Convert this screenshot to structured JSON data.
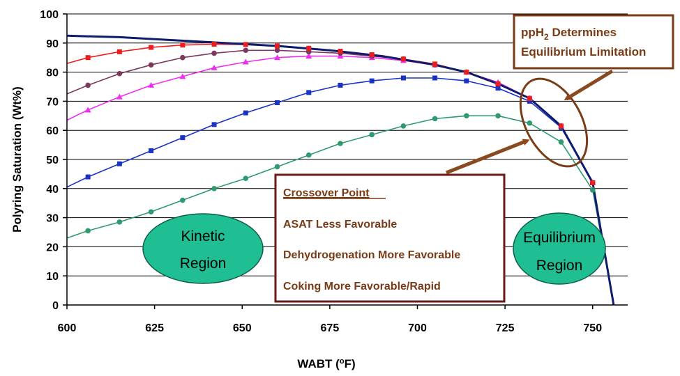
{
  "chart_data": {
    "type": "line",
    "xlabel": "WABT",
    "xlabel_unit_sup": "o",
    "xlabel_unit": "F",
    "ylabel": "Polyring Saturation (Wt%)",
    "xlim": [
      600,
      760
    ],
    "ylim": [
      0,
      100
    ],
    "x_ticks": [
      600,
      625,
      650,
      675,
      700,
      725,
      750
    ],
    "y_ticks": [
      0,
      10,
      20,
      30,
      40,
      50,
      60,
      70,
      80,
      90,
      100
    ],
    "grid": "horizontal",
    "series": [
      {
        "color": "#2e9a6e",
        "marker": "circle",
        "x": [
          600,
          606,
          615,
          624,
          633,
          642,
          651,
          660,
          669,
          678,
          687,
          696,
          705,
          714,
          723,
          732,
          741,
          750,
          756
        ],
        "y": [
          23,
          25.5,
          28.5,
          32,
          36,
          40,
          43.5,
          47.5,
          51.5,
          55.5,
          58.5,
          61.5,
          64,
          65,
          65,
          62.5,
          56,
          39.5,
          0
        ]
      },
      {
        "color": "#1a33c4",
        "marker": "square",
        "x": [
          600,
          606,
          615,
          624,
          633,
          642,
          651,
          660,
          669,
          678,
          687,
          696,
          705,
          714,
          723,
          732,
          741,
          750,
          756
        ],
        "y": [
          40.5,
          44,
          48.5,
          53,
          57.5,
          62,
          66,
          69.5,
          73,
          75.5,
          77,
          78,
          78,
          77,
          74.5,
          70,
          61,
          42,
          0
        ]
      },
      {
        "color": "#ee30ee",
        "marker": "triangle",
        "x": [
          600,
          606,
          615,
          624,
          633,
          642,
          651,
          660,
          669,
          678,
          687,
          696,
          705,
          714,
          723,
          732,
          741,
          750,
          756
        ],
        "y": [
          63.5,
          67,
          71.5,
          75.5,
          78.5,
          81.5,
          83.5,
          85,
          85.5,
          85.5,
          85,
          84,
          82.5,
          80,
          76.5,
          71,
          61.5,
          42,
          0
        ]
      },
      {
        "color": "#7a3a5e",
        "marker": "circle",
        "x": [
          600,
          606,
          615,
          624,
          633,
          642,
          651,
          660,
          669,
          678,
          687,
          696,
          705,
          714,
          723,
          732,
          741,
          750,
          756
        ],
        "y": [
          72.5,
          75.5,
          79.5,
          82.5,
          85,
          86.5,
          87.5,
          87.5,
          87,
          86.5,
          85.5,
          84.5,
          82.5,
          80,
          76,
          71,
          61.5,
          42,
          0
        ]
      },
      {
        "color": "#ee1c1c",
        "marker": "square",
        "x": [
          600,
          606,
          615,
          624,
          633,
          642,
          651,
          660,
          669,
          678,
          687,
          696,
          705,
          714,
          723,
          732,
          741,
          750,
          756
        ],
        "y": [
          83,
          85,
          87,
          88.5,
          89.3,
          89.6,
          89.5,
          89,
          88.2,
          87.2,
          86,
          84.5,
          82.8,
          80,
          76,
          71,
          61.5,
          42,
          0
        ]
      },
      {
        "color": "#0f1b6e",
        "marker": "none",
        "x": [
          600,
          615,
          630,
          645,
          660,
          675,
          690,
          705,
          714,
          723,
          732,
          741,
          750,
          756
        ],
        "y": [
          92.5,
          92,
          91,
          90,
          89,
          87.5,
          85.5,
          82.5,
          80,
          76,
          71,
          61.5,
          42,
          0
        ]
      }
    ]
  },
  "annotations": {
    "pph2": {
      "line1_pre": "ppH",
      "line1_sub": "2",
      "line1_post": " Determines",
      "line2": "Equilibrium Limitation"
    },
    "crossover": {
      "title": "Crossover Point",
      "items": [
        "ASAT Less Favorable",
        "Dehydrogenation More Favorable",
        "Coking More Favorable/Rapid"
      ]
    },
    "kinetic": {
      "line1": "Kinetic",
      "line2": "Region"
    },
    "equilibrium": {
      "line1": "Equilibrium",
      "line2": "Region"
    }
  },
  "colors": {
    "annotation_border": "#7a3b17",
    "annotation_text": "#7a3b17",
    "region_fill": "#1fbf93",
    "arrow": "#8a4a20"
  }
}
